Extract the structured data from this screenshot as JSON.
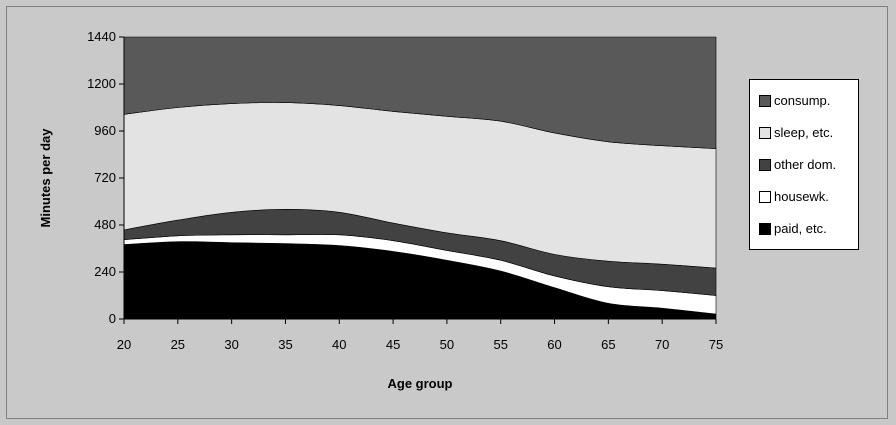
{
  "chart_data": {
    "type": "area",
    "stacked": true,
    "xlabel": "Age group",
    "ylabel": "Minutes per day",
    "x": [
      20,
      25,
      30,
      35,
      40,
      45,
      50,
      55,
      60,
      65,
      70,
      75
    ],
    "ylim": [
      0,
      1440
    ],
    "yticks": [
      0,
      240,
      480,
      720,
      960,
      1200,
      1440
    ],
    "legend_position": "right",
    "series": [
      {
        "name": "paid, etc.",
        "color": "#000000",
        "values": [
          380,
          395,
          390,
          385,
          375,
          345,
          300,
          245,
          160,
          80,
          55,
          25
        ]
      },
      {
        "name": "housewk.",
        "color": "#ffffff",
        "values": [
          25,
          30,
          40,
          45,
          55,
          55,
          50,
          55,
          60,
          85,
          90,
          95
        ]
      },
      {
        "name": "other dom.",
        "color": "#424242",
        "values": [
          50,
          80,
          115,
          130,
          115,
          90,
          90,
          100,
          110,
          130,
          135,
          140
        ]
      },
      {
        "name": "sleep, etc.",
        "color": "#e3e3e3",
        "values": [
          590,
          575,
          555,
          545,
          545,
          570,
          595,
          610,
          620,
          610,
          605,
          610
        ]
      },
      {
        "name": "consump.",
        "color": "#595959",
        "values": [
          395,
          360,
          340,
          335,
          350,
          380,
          405,
          430,
          490,
          535,
          555,
          570
        ]
      }
    ],
    "legend_order": [
      "consump.",
      "sleep, etc.",
      "other dom.",
      "housewk.",
      "paid, etc."
    ]
  }
}
